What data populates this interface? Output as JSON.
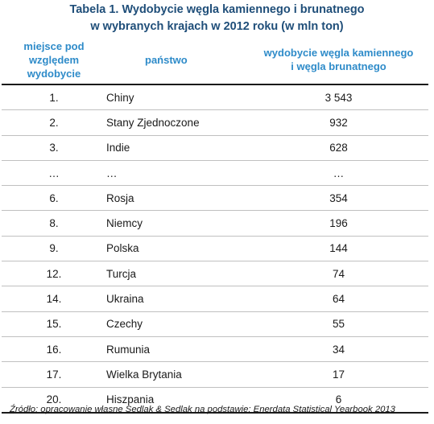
{
  "title": {
    "line1": "Tabela 1. Wydobycie węgla kamiennego i brunatnego",
    "line2": "w wybranych krajach w 2012 roku (w mln ton)"
  },
  "headers": {
    "rank": [
      "miejsce pod",
      "względem",
      "wydobycie"
    ],
    "country": "państwo",
    "value": [
      "wydobycie węgla kamiennego",
      "i węgla brunatnego"
    ]
  },
  "rows": [
    {
      "rank": "1.",
      "country": "Chiny",
      "value": "3 543"
    },
    {
      "rank": "2.",
      "country": "Stany Zjednoczone",
      "value": "932"
    },
    {
      "rank": "3.",
      "country": "Indie",
      "value": "628"
    },
    {
      "rank": "…",
      "country": "…",
      "value": "…"
    },
    {
      "rank": "6.",
      "country": "Rosja",
      "value": "354"
    },
    {
      "rank": "8.",
      "country": "Niemcy",
      "value": "196"
    },
    {
      "rank": "9.",
      "country": "Polska",
      "value": "144"
    },
    {
      "rank": "12.",
      "country": "Turcja",
      "value": "74"
    },
    {
      "rank": "14.",
      "country": "Ukraina",
      "value": "64"
    },
    {
      "rank": "15.",
      "country": "Czechy",
      "value": "55"
    },
    {
      "rank": "16.",
      "country": "Rumunia",
      "value": "34"
    },
    {
      "rank": "17.",
      "country": "Wielka Brytania",
      "value": "17"
    },
    {
      "rank": "20.",
      "country": "Hiszpania",
      "value": "6"
    }
  ],
  "source": "Źródło: opracowanie własne Sedlak & Sedlak na podstawie: Enerdata Statistical Yearbook 2013",
  "colors": {
    "title": "#1f4e79",
    "header": "#2e8bc9"
  }
}
